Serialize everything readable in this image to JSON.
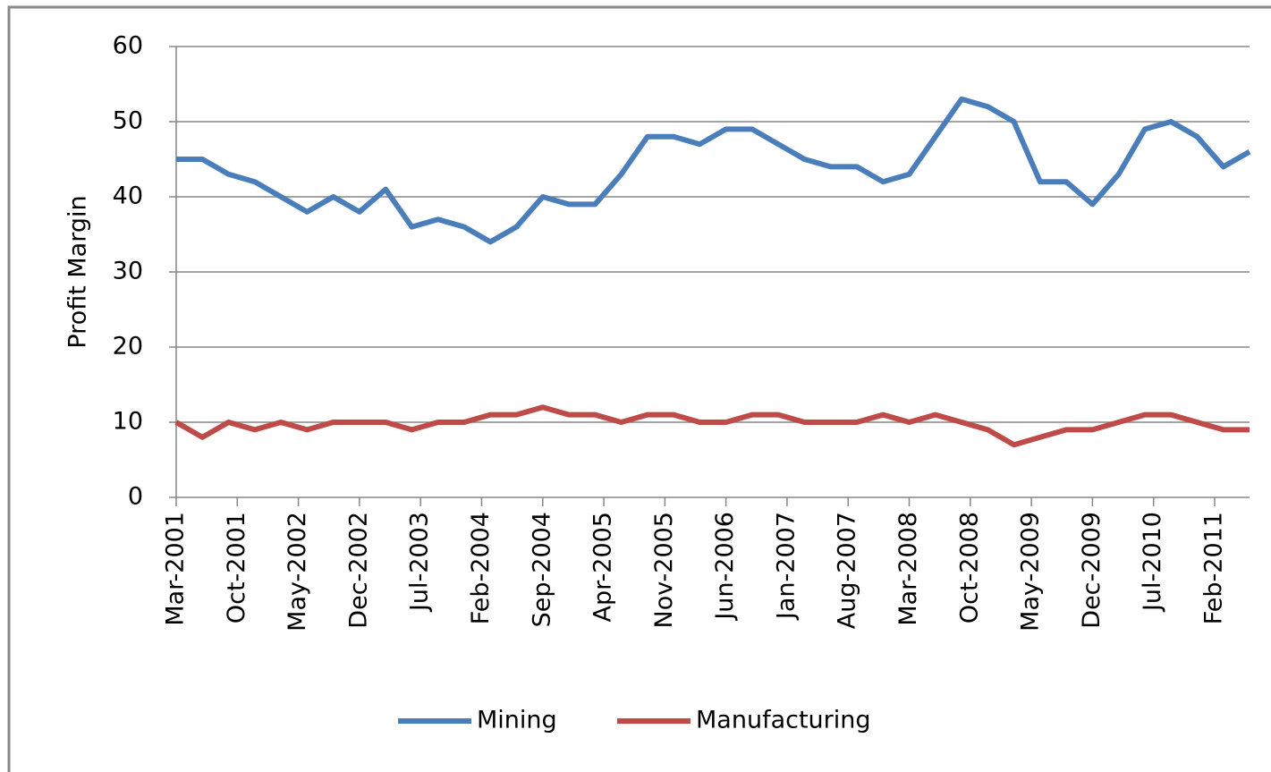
{
  "chart_data": {
    "type": "line",
    "y_label": "Profit Margin",
    "x": [
      "Mar-2001",
      "Jun-2001",
      "Sep-2001",
      "Dec-2001",
      "Mar-2002",
      "Jun-2002",
      "Sep-2002",
      "Dec-2002",
      "Mar-2003",
      "Jun-2003",
      "Sep-2003",
      "Dec-2003",
      "Mar-2004",
      "Jun-2004",
      "Sep-2004",
      "Dec-2004",
      "Mar-2005",
      "Jun-2005",
      "Sep-2005",
      "Dec-2005",
      "Mar-2006",
      "Jun-2006",
      "Sep-2006",
      "Dec-2006",
      "Mar-2007",
      "Jun-2007",
      "Sep-2007",
      "Dec-2007",
      "Mar-2008",
      "Jun-2008",
      "Sep-2008",
      "Dec-2008",
      "Mar-2009",
      "Jun-2009",
      "Sep-2009",
      "Dec-2009",
      "Mar-2010",
      "Jun-2010",
      "Sep-2010",
      "Dec-2010",
      "Mar-2011",
      "Jun-2011"
    ],
    "series": [
      {
        "name": "Mining",
        "color": "#4a7ebb",
        "values": [
          45,
          45,
          43,
          42,
          40,
          38,
          40,
          38,
          41,
          36,
          37,
          36,
          34,
          36,
          40,
          39,
          39,
          43,
          48,
          48,
          47,
          49,
          49,
          47,
          45,
          44,
          44,
          42,
          43,
          48,
          53,
          52,
          50,
          42,
          42,
          39,
          43,
          49,
          50,
          48,
          44,
          46
        ]
      },
      {
        "name": "Manufacturing",
        "color": "#be4b48",
        "values": [
          10,
          8,
          10,
          9,
          10,
          9,
          10,
          10,
          10,
          9,
          10,
          10,
          11,
          11,
          12,
          11,
          11,
          10,
          11,
          11,
          10,
          10,
          11,
          11,
          10,
          10,
          10,
          11,
          10,
          11,
          10,
          9,
          7,
          8,
          9,
          9,
          10,
          11,
          11,
          10,
          9,
          9
        ]
      }
    ],
    "xlim": [
      "Mar-2001",
      "Jun-2011"
    ],
    "xticks": [
      "Mar-2001",
      "Oct-2001",
      "May-2002",
      "Dec-2002",
      "Jul-2003",
      "Feb-2004",
      "Sep-2004",
      "Apr-2005",
      "Nov-2005",
      "Jun-2006",
      "Jan-2007",
      "Aug-2007",
      "Mar-2008",
      "Oct-2008",
      "May-2009",
      "Dec-2009",
      "Jul-2010",
      "Feb-2011"
    ],
    "ylim": [
      0,
      60
    ],
    "yticks": [
      0,
      10,
      20,
      30,
      40,
      50,
      60
    ],
    "grid": true,
    "legend": "bottom"
  }
}
